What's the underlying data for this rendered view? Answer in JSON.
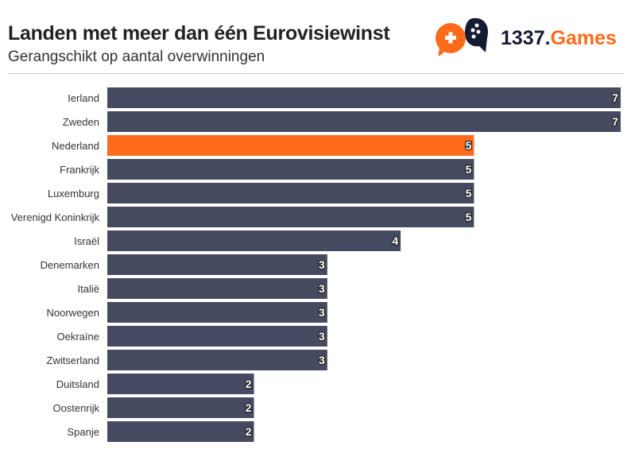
{
  "header": {
    "title": "Landen met meer dan één Eurovisiewinst",
    "subtitle": "Gerangschikt op aantal overwinningen"
  },
  "logo": {
    "brand_prefix": "1337.",
    "brand_suffix": "Games"
  },
  "colors": {
    "default": "#454a60",
    "highlight": "#ff6b1a"
  },
  "chart_data": {
    "type": "bar",
    "orientation": "horizontal",
    "title": "Landen met meer dan één Eurovisiewinst",
    "subtitle": "Gerangschikt op aantal overwinningen",
    "categories": [
      "Ierland",
      "Zweden",
      "Nederland",
      "Frankrijk",
      "Luxemburg",
      "Verenigd Koninkrijk",
      "Israël",
      "Denemarken",
      "Italië",
      "Noorwegen",
      "Oekraïne",
      "Zwitserland",
      "Duitsland",
      "Oostenrijk",
      "Spanje"
    ],
    "values": [
      7,
      7,
      5,
      5,
      5,
      5,
      4,
      3,
      3,
      3,
      3,
      3,
      2,
      2,
      2
    ],
    "highlight": "Nederland",
    "xlim": [
      0,
      7
    ],
    "grid": false
  }
}
